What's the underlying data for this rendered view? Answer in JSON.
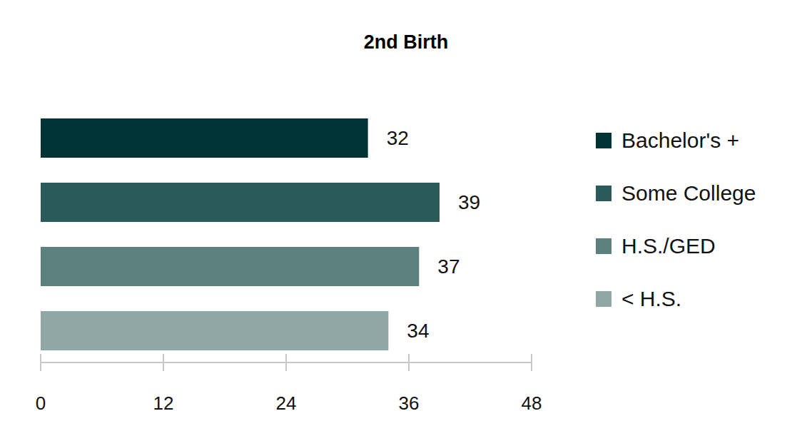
{
  "chart_data": {
    "type": "bar",
    "title": "2nd Birth",
    "orientation": "horizontal",
    "categories": [
      "Bachelor's +",
      "Some College",
      "H.S./GED",
      "< H.S."
    ],
    "values": [
      32,
      39,
      37,
      34
    ],
    "colors": [
      "#003333",
      "#2b5a5a",
      "#5c807e",
      "#8fa7a5"
    ],
    "xlim": [
      0,
      48
    ],
    "xticks": [
      0,
      12,
      24,
      36,
      48
    ],
    "data_labels": true,
    "tick_labels": "x",
    "legend": "right",
    "grid": false
  }
}
